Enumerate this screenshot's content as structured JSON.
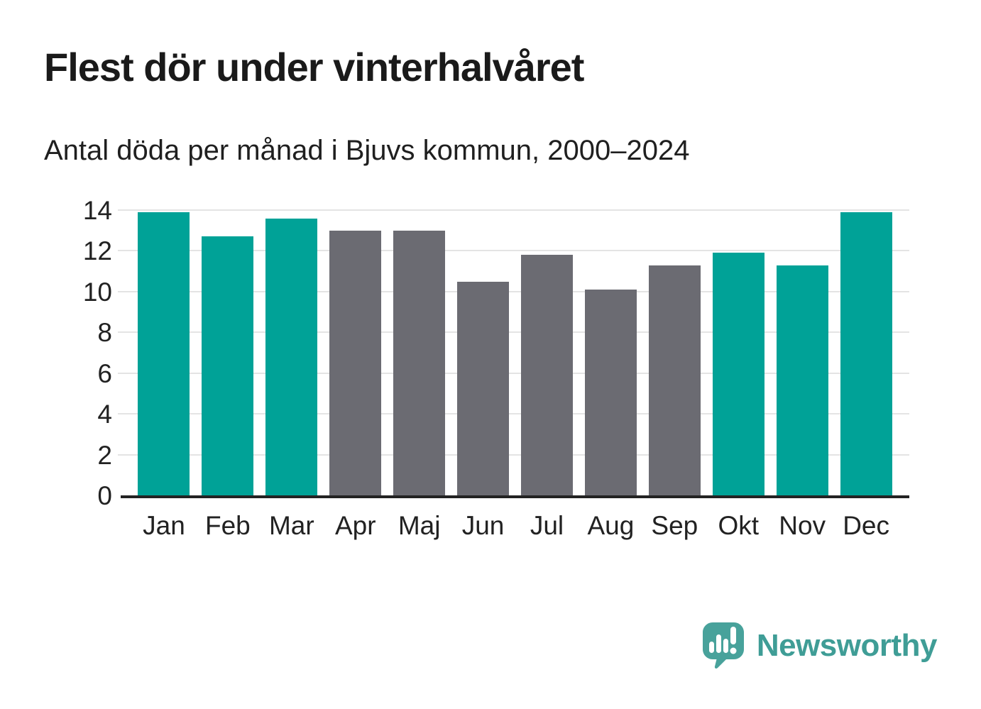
{
  "title": "Flest dör under vinterhalvåret",
  "subtitle": "Antal döda per månad i Bjuvs kommun, 2000–2024",
  "brand": {
    "name": "Newsworthy",
    "icon": "speech-bubble-bar-chart-exclamation-icon",
    "text_color": "#3f9d96",
    "icon_color": "#48a29b"
  },
  "colors": {
    "winter": "#00a297",
    "summer": "#6b6b72",
    "gridline": "#e4e4e4",
    "axis": "#232323",
    "text": "#222222"
  },
  "chart_data": {
    "type": "bar",
    "title": "Flest dör under vinterhalvåret",
    "subtitle": "Antal döda per månad i Bjuvs kommun, 2000–2024",
    "categories": [
      "Jan",
      "Feb",
      "Mar",
      "Apr",
      "Maj",
      "Jun",
      "Jul",
      "Aug",
      "Sep",
      "Okt",
      "Nov",
      "Dec"
    ],
    "values": [
      13.9,
      12.7,
      13.6,
      13.0,
      13.0,
      10.5,
      11.8,
      10.1,
      11.3,
      11.9,
      11.3,
      13.9
    ],
    "bar_seasons": [
      "winter",
      "winter",
      "winter",
      "summer",
      "summer",
      "summer",
      "summer",
      "summer",
      "summer",
      "winter",
      "winter",
      "winter"
    ],
    "xlabel": "",
    "ylabel": "",
    "ylim": [
      0,
      14
    ],
    "yticks": [
      0,
      2,
      4,
      6,
      8,
      10,
      12,
      14
    ],
    "grid": true,
    "legend_position": "none"
  }
}
